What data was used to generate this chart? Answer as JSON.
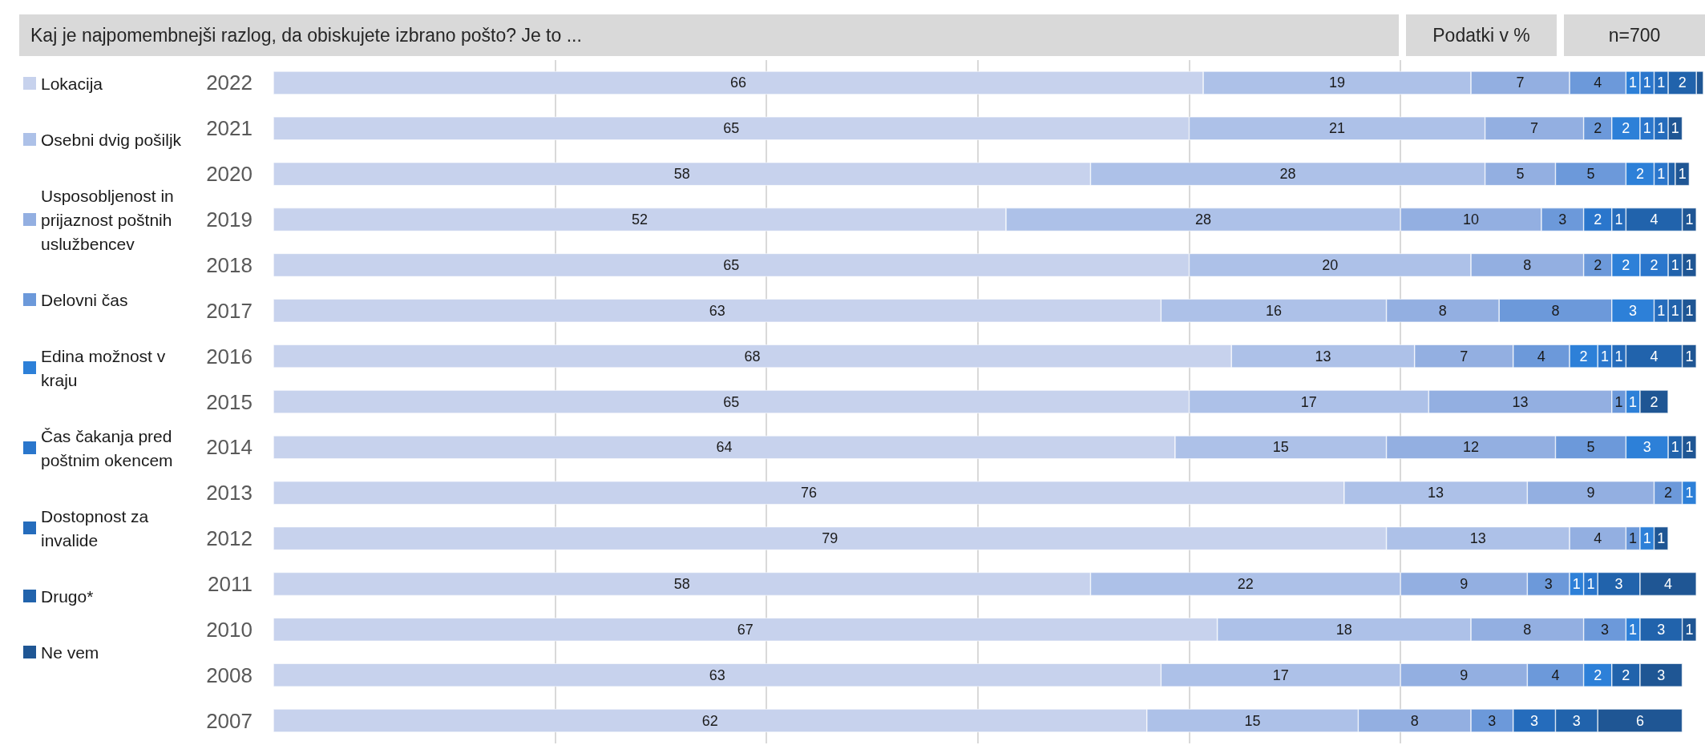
{
  "chart_data": {
    "type": "bar",
    "orientation": "horizontal",
    "stacked": true,
    "title": "Kaj je najpomembnejši razlog, da obiskujete izbrano pošto? Je to ...",
    "annotations": [
      "Podatki v %",
      "n=700"
    ],
    "categories": [
      "2022",
      "2021",
      "2020",
      "2019",
      "2018",
      "2017",
      "2016",
      "2015",
      "2014",
      "2013",
      "2012",
      "2011",
      "2010",
      "2008",
      "2007"
    ],
    "xlim": [
      0,
      101.5
    ],
    "xticks": [
      {
        "value": 20,
        "label": null
      },
      {
        "value": 35,
        "label": null
      },
      {
        "value": 50,
        "label": null
      },
      {
        "value": 65,
        "label": null
      },
      {
        "value": 80,
        "label": null
      }
    ],
    "grid": "x",
    "tick_labels": "y",
    "legend": "left",
    "data_labels": true,
    "series": [
      {
        "name": "Lokacija",
        "color": "#c7d2ed",
        "values": [
          66,
          65,
          58,
          52,
          65,
          63,
          68,
          65,
          64,
          76,
          79,
          58,
          67,
          63,
          62
        ]
      },
      {
        "name": "Osebni dvig pošiljk",
        "color": "#adc1e8",
        "values": [
          19,
          21,
          28,
          28,
          20,
          16,
          13,
          17,
          15,
          13,
          13,
          22,
          18,
          17,
          15
        ]
      },
      {
        "name": "Usposobljenost in prijaznost poštnih uslužbencev",
        "color": "#93afe1",
        "values": [
          7,
          7,
          5,
          10,
          8,
          8,
          7,
          13,
          12,
          9,
          4,
          9,
          8,
          9,
          8
        ]
      },
      {
        "name": "Delovni čas",
        "color": "#6c99da",
        "values": [
          4,
          2,
          5,
          3,
          2,
          8,
          4,
          1,
          5,
          2,
          1,
          3,
          3,
          4,
          3
        ]
      },
      {
        "name": "Edina možnost v kraju",
        "color": "#2d80d8",
        "values": [
          1,
          2,
          2,
          null,
          2,
          3,
          2,
          1,
          3,
          1,
          1,
          1,
          1,
          2,
          null
        ]
      },
      {
        "name": "Čas čakanja pred poštnim okencem",
        "color": "#2a76cc",
        "values": [
          1,
          1,
          1,
          2,
          2,
          null,
          1,
          null,
          null,
          null,
          null,
          1,
          null,
          null,
          null
        ]
      },
      {
        "name": "Dostopnost za invalide",
        "color": "#256cbc",
        "values": [
          1,
          1,
          null,
          1,
          null,
          1,
          1,
          null,
          null,
          null,
          null,
          null,
          null,
          null,
          3
        ]
      },
      {
        "name": "Drugo*",
        "color": "#2163ac",
        "values": [
          2,
          null,
          0.5,
          4,
          1,
          1,
          4,
          null,
          1,
          null,
          null,
          3,
          3,
          2,
          3
        ],
        "value_labels": [
          "2",
          null,
          null,
          "4",
          "1",
          "1",
          "4",
          null,
          "1",
          null,
          null,
          "3",
          "3",
          "2",
          "3"
        ]
      },
      {
        "name": "Ne vem",
        "color": "#1f5694",
        "values": [
          0.5,
          1,
          1,
          1,
          1,
          1,
          1,
          2,
          1,
          null,
          1,
          4,
          1,
          3,
          6
        ],
        "value_labels": [
          null,
          "1",
          "1",
          "1",
          "1",
          "1",
          "1",
          "2",
          "1",
          null,
          "1",
          "4",
          "1",
          "3",
          "6"
        ]
      }
    ]
  }
}
